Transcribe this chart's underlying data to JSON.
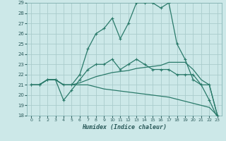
{
  "xlabel": "Humidex (Indice chaleur)",
  "bg_color": "#cce8e8",
  "grid_color": "#aacccc",
  "line_color": "#2a7a6a",
  "xlim": [
    -0.5,
    23.5
  ],
  "ylim": [
    18,
    29
  ],
  "yticks": [
    18,
    19,
    20,
    21,
    22,
    23,
    24,
    25,
    26,
    27,
    28,
    29
  ],
  "xticks": [
    0,
    1,
    2,
    3,
    4,
    5,
    6,
    7,
    8,
    9,
    10,
    11,
    12,
    13,
    14,
    15,
    16,
    17,
    18,
    19,
    20,
    21,
    22,
    23
  ],
  "series": [
    [
      21.0,
      21.0,
      21.5,
      21.5,
      21.0,
      21.0,
      22.0,
      24.5,
      26.0,
      26.5,
      27.5,
      25.5,
      27.0,
      29.0,
      29.0,
      29.0,
      28.5,
      29.0,
      25.0,
      23.5,
      21.5,
      21.0,
      19.5,
      17.8
    ],
    [
      21.0,
      21.0,
      21.5,
      21.5,
      19.5,
      20.5,
      21.5,
      22.5,
      23.0,
      23.0,
      23.5,
      22.5,
      23.0,
      23.5,
      23.0,
      22.5,
      22.5,
      22.5,
      22.0,
      22.0,
      22.0,
      21.0,
      21.0,
      18.0
    ],
    [
      21.0,
      21.0,
      21.5,
      21.5,
      21.0,
      21.0,
      21.2,
      21.5,
      21.8,
      22.0,
      22.2,
      22.3,
      22.4,
      22.6,
      22.7,
      22.8,
      22.9,
      23.2,
      23.2,
      23.2,
      22.5,
      21.5,
      21.0,
      18.0
    ],
    [
      21.0,
      21.0,
      21.5,
      21.5,
      21.0,
      21.0,
      21.0,
      21.0,
      20.8,
      20.6,
      20.5,
      20.4,
      20.3,
      20.2,
      20.1,
      20.0,
      19.9,
      19.8,
      19.6,
      19.4,
      19.2,
      19.0,
      18.8,
      18.0
    ]
  ],
  "markers": [
    true,
    true,
    false,
    false
  ]
}
